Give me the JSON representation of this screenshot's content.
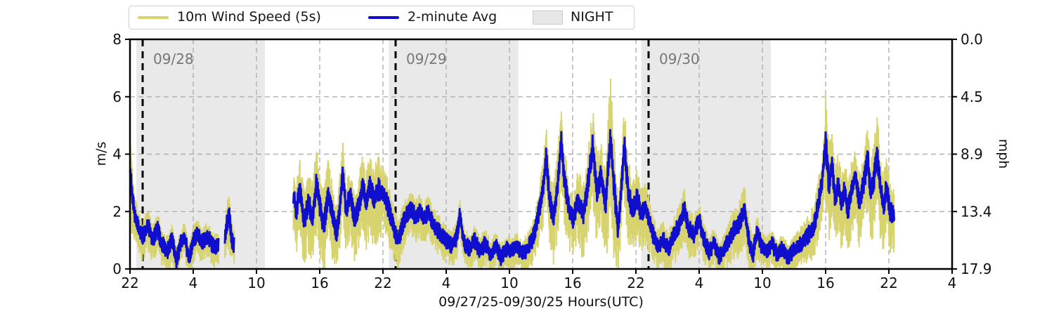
{
  "figure": {
    "legend": {
      "items": [
        {
          "label": "10m Wind Speed (5s)",
          "swatch": "line"
        },
        {
          "label": "2-minute Avg",
          "swatch": "line"
        },
        {
          "label": "NIGHT",
          "swatch": "patch"
        }
      ]
    },
    "left_axis": {
      "label": "m/s"
    },
    "right_axis": {
      "label": "mph"
    },
    "x_axis": {
      "label": "09/27/25-09/30/25  Hours(UTC)"
    },
    "annotations": {
      "d1": "09/28",
      "d2": "09/29",
      "d3": "09/30"
    }
  },
  "chart_data": {
    "type": "line",
    "xlabel": "09/27/25-09/30/25  Hours(UTC)",
    "ylabel_left": "m/s",
    "ylabel_right": "mph",
    "x_range_hours": [
      0,
      78
    ],
    "x_tick_step_hours": 6,
    "x_tick_labels": [
      "22",
      "4",
      "10",
      "16",
      "22",
      "4",
      "10",
      "16",
      "22",
      "4",
      "10",
      "16",
      "22",
      "4"
    ],
    "ylim_left": [
      0,
      8
    ],
    "yticks_left": [
      0,
      2,
      4,
      6,
      8
    ],
    "yticks_right_labels": [
      "0.0",
      "4.5",
      "8.9",
      "13.4",
      "17.9"
    ],
    "grid": true,
    "legend_position": "top",
    "colors": {
      "raw": "#d7d36e",
      "avg": "#0f0fcd",
      "night": "#e9e9e9",
      "grid": "#b0b0b0",
      "date_line": "#000000",
      "date_text": "#767676",
      "spine": "#000000"
    },
    "night_regions": [
      [
        0.6,
        12.8
      ],
      [
        24.55,
        36.85
      ],
      [
        48.5,
        60.8
      ]
    ],
    "date_lines": [
      {
        "t": 1.2,
        "label": "09/28"
      },
      {
        "t": 25.2,
        "label": "09/29"
      },
      {
        "t": 49.2,
        "label": "09/30"
      }
    ],
    "series": [
      {
        "name": "10m Wind Speed (5s)",
        "role": "raw"
      },
      {
        "name": "2-minute Avg",
        "role": "avg"
      }
    ],
    "segments": [
      [
        0,
        8.4
      ],
      [
        9.0,
        9.9
      ],
      [
        15.5,
        72.5
      ]
    ],
    "avg_keyframes": [
      [
        0,
        3.5
      ],
      [
        0.2,
        2.6
      ],
      [
        0.5,
        1.8
      ],
      [
        0.8,
        1.4
      ],
      [
        1.2,
        1.1
      ],
      [
        1.7,
        1.5
      ],
      [
        2.2,
        1.0
      ],
      [
        2.6,
        1.4
      ],
      [
        3.0,
        0.9
      ],
      [
        3.5,
        0.6
      ],
      [
        4.0,
        1.0
      ],
      [
        4.4,
        0.25
      ],
      [
        4.8,
        0.9
      ],
      [
        5.2,
        1.1
      ],
      [
        5.6,
        0.35
      ],
      [
        6.0,
        1.0
      ],
      [
        6.4,
        1.2
      ],
      [
        6.8,
        0.9
      ],
      [
        7.2,
        1.1
      ],
      [
        7.6,
        1.0
      ],
      [
        8.0,
        0.7
      ],
      [
        8.4,
        0.9
      ],
      [
        9.0,
        1.0
      ],
      [
        9.2,
        1.6
      ],
      [
        9.4,
        2.0
      ],
      [
        9.6,
        1.1
      ],
      [
        9.9,
        0.8
      ],
      [
        15.5,
        2.6
      ],
      [
        15.8,
        2.0
      ],
      [
        16.1,
        2.9
      ],
      [
        16.5,
        1.6
      ],
      [
        16.9,
        2.3
      ],
      [
        17.3,
        1.8
      ],
      [
        17.7,
        3.0
      ],
      [
        18.0,
        2.2
      ],
      [
        18.4,
        1.5
      ],
      [
        18.8,
        2.6
      ],
      [
        19.2,
        1.9
      ],
      [
        19.6,
        1.2
      ],
      [
        20.0,
        2.5
      ],
      [
        20.2,
        3.4
      ],
      [
        20.5,
        2.0
      ],
      [
        20.9,
        2.6
      ],
      [
        21.3,
        1.7
      ],
      [
        21.7,
        2.2
      ],
      [
        22.1,
        3.0
      ],
      [
        22.4,
        2.2
      ],
      [
        22.8,
        2.9
      ],
      [
        23.2,
        2.4
      ],
      [
        23.6,
        2.8
      ],
      [
        24.0,
        2.6
      ],
      [
        24.3,
        2.4
      ],
      [
        24.7,
        1.9
      ],
      [
        25.1,
        1.3
      ],
      [
        25.5,
        1.0
      ],
      [
        25.9,
        1.6
      ],
      [
        26.3,
        1.9
      ],
      [
        26.7,
        2.1
      ],
      [
        27.1,
        1.8
      ],
      [
        27.5,
        2.0
      ],
      [
        27.9,
        1.7
      ],
      [
        28.3,
        2.0
      ],
      [
        28.7,
        1.6
      ],
      [
        29.1,
        1.4
      ],
      [
        29.5,
        1.2
      ],
      [
        30.0,
        1.0
      ],
      [
        30.5,
        0.8
      ],
      [
        31.0,
        1.1
      ],
      [
        31.3,
        1.9
      ],
      [
        31.7,
        0.9
      ],
      [
        32.2,
        0.7
      ],
      [
        32.7,
        1.0
      ],
      [
        33.2,
        0.6
      ],
      [
        33.7,
        0.9
      ],
      [
        34.2,
        0.5
      ],
      [
        34.7,
        0.8
      ],
      [
        35.2,
        0.4
      ],
      [
        35.7,
        0.7
      ],
      [
        36.2,
        0.6
      ],
      [
        36.7,
        0.8
      ],
      [
        37.2,
        0.5
      ],
      [
        37.7,
        0.7
      ],
      [
        38.2,
        1.0
      ],
      [
        38.7,
        1.8
      ],
      [
        39.1,
        2.6
      ],
      [
        39.5,
        3.9
      ],
      [
        39.8,
        2.4
      ],
      [
        40.2,
        1.8
      ],
      [
        40.6,
        3.0
      ],
      [
        40.9,
        4.5
      ],
      [
        41.2,
        3.2
      ],
      [
        41.6,
        2.2
      ],
      [
        42.0,
        1.7
      ],
      [
        42.5,
        2.4
      ],
      [
        43.0,
        1.9
      ],
      [
        43.4,
        2.8
      ],
      [
        43.9,
        4.3
      ],
      [
        44.3,
        2.7
      ],
      [
        44.7,
        3.3
      ],
      [
        45.1,
        2.2
      ],
      [
        45.6,
        4.5
      ],
      [
        45.9,
        3.0
      ],
      [
        46.3,
        1.3
      ],
      [
        46.9,
        4.3
      ],
      [
        47.3,
        2.6
      ],
      [
        47.7,
        2.0
      ],
      [
        48.1,
        2.5
      ],
      [
        48.5,
        1.9
      ],
      [
        48.9,
        2.2
      ],
      [
        49.3,
        1.6
      ],
      [
        49.7,
        1.1
      ],
      [
        50.1,
        0.8
      ],
      [
        50.6,
        1.0
      ],
      [
        51.1,
        0.7
      ],
      [
        51.6,
        1.2
      ],
      [
        52.1,
        1.5
      ],
      [
        52.6,
        2.1
      ],
      [
        53.0,
        1.4
      ],
      [
        53.5,
        1.2
      ],
      [
        54.0,
        1.7
      ],
      [
        54.4,
        1.1
      ],
      [
        54.9,
        0.6
      ],
      [
        55.4,
        0.9
      ],
      [
        55.9,
        0.4
      ],
      [
        56.4,
        0.7
      ],
      [
        56.9,
        1.1
      ],
      [
        57.4,
        1.4
      ],
      [
        57.9,
        1.6
      ],
      [
        58.3,
        2.2
      ],
      [
        58.7,
        1.0
      ],
      [
        59.1,
        0.5
      ],
      [
        59.5,
        1.3
      ],
      [
        59.9,
        0.8
      ],
      [
        60.4,
        0.6
      ],
      [
        60.9,
        0.9
      ],
      [
        61.4,
        0.5
      ],
      [
        61.9,
        0.7
      ],
      [
        62.4,
        0.4
      ],
      [
        62.9,
        0.6
      ],
      [
        63.4,
        0.8
      ],
      [
        63.9,
        1.0
      ],
      [
        64.4,
        1.2
      ],
      [
        64.9,
        1.5
      ],
      [
        65.3,
        2.2
      ],
      [
        65.7,
        3.2
      ],
      [
        66.0,
        4.5
      ],
      [
        66.3,
        3.0
      ],
      [
        66.6,
        3.6
      ],
      [
        66.9,
        2.4
      ],
      [
        67.2,
        3.0
      ],
      [
        67.5,
        2.2
      ],
      [
        67.8,
        2.8
      ],
      [
        68.1,
        2.0
      ],
      [
        68.4,
        2.6
      ],
      [
        68.8,
        3.3
      ],
      [
        69.2,
        2.3
      ],
      [
        69.6,
        3.0
      ],
      [
        70.0,
        3.8
      ],
      [
        70.3,
        2.6
      ],
      [
        70.6,
        3.2
      ],
      [
        70.9,
        4.0
      ],
      [
        71.2,
        2.8
      ],
      [
        71.5,
        2.2
      ],
      [
        71.8,
        2.9
      ],
      [
        72.1,
        2.0
      ],
      [
        72.5,
        1.9
      ]
    ],
    "gust_halfwidth_keyframes": [
      [
        0,
        1.4
      ],
      [
        0.4,
        0.8
      ],
      [
        1.0,
        0.6
      ],
      [
        4.0,
        0.55
      ],
      [
        8.4,
        0.5
      ],
      [
        9.0,
        0.6
      ],
      [
        9.4,
        0.85
      ],
      [
        9.9,
        0.5
      ],
      [
        15.5,
        1.0
      ],
      [
        17.8,
        1.3
      ],
      [
        20.0,
        1.1
      ],
      [
        21.5,
        1.0
      ],
      [
        23.3,
        1.3
      ],
      [
        24.5,
        0.9
      ],
      [
        26.0,
        0.65
      ],
      [
        28.0,
        0.6
      ],
      [
        31.0,
        0.55
      ],
      [
        34.0,
        0.5
      ],
      [
        36.5,
        0.45
      ],
      [
        38.0,
        0.6
      ],
      [
        39.5,
        1.1
      ],
      [
        40.9,
        1.3
      ],
      [
        42.0,
        0.9
      ],
      [
        43.9,
        1.4
      ],
      [
        45.0,
        1.2
      ],
      [
        45.6,
        2.3
      ],
      [
        46.3,
        1.2
      ],
      [
        46.9,
        1.4
      ],
      [
        48.0,
        1.0
      ],
      [
        49.0,
        0.9
      ],
      [
        50.0,
        0.6
      ],
      [
        52.6,
        0.8
      ],
      [
        54.0,
        0.6
      ],
      [
        55.9,
        0.5
      ],
      [
        58.3,
        0.9
      ],
      [
        59.5,
        0.6
      ],
      [
        61.0,
        0.5
      ],
      [
        63.0,
        0.5
      ],
      [
        64.5,
        0.7
      ],
      [
        65.7,
        1.0
      ],
      [
        66.0,
        1.8
      ],
      [
        66.6,
        1.3
      ],
      [
        67.5,
        1.1
      ],
      [
        68.8,
        1.1
      ],
      [
        70.0,
        1.2
      ],
      [
        70.9,
        1.4
      ],
      [
        71.8,
        1.1
      ],
      [
        72.5,
        0.9
      ]
    ]
  }
}
